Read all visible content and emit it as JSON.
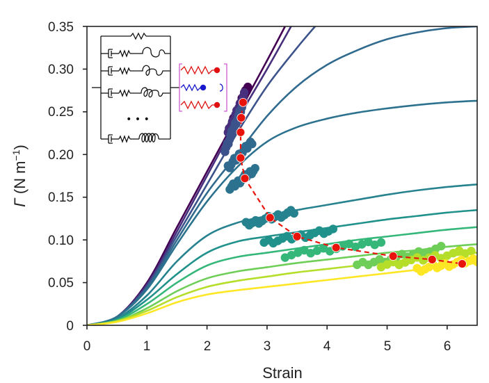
{
  "chart_data": {
    "type": "line",
    "xlabel": "Strain",
    "ylabel": {
      "symbol": "Γ",
      "unit": "(N m",
      "exp": "−1",
      "close": ")"
    },
    "xlim": [
      0,
      6.5
    ],
    "ylim": [
      0,
      0.35
    ],
    "xticks": [
      "0",
      "1",
      "2",
      "3",
      "4",
      "5",
      "6"
    ],
    "yticks": [
      "0",
      "0.05",
      "0.10",
      "0.15",
      "0.20",
      "0.25",
      "0.30",
      "0.35"
    ],
    "series": [
      {
        "name": "curve-1",
        "color": "#440154",
        "points": [
          [
            0,
            0
          ],
          [
            0.5,
            0.01
          ],
          [
            1,
            0.05
          ],
          [
            1.5,
            0.115
          ],
          [
            2,
            0.18
          ],
          [
            2.5,
            0.245
          ],
          [
            3,
            0.31
          ],
          [
            3.3,
            0.35
          ]
        ]
      },
      {
        "name": "curve-2",
        "color": "#472f7d",
        "points": [
          [
            0,
            0
          ],
          [
            0.5,
            0.01
          ],
          [
            1,
            0.048
          ],
          [
            1.5,
            0.11
          ],
          [
            2,
            0.175
          ],
          [
            2.5,
            0.24
          ],
          [
            3,
            0.3
          ],
          [
            3.4,
            0.35
          ]
        ]
      },
      {
        "name": "curve-3",
        "color": "#3b528b",
        "points": [
          [
            0,
            0
          ],
          [
            0.5,
            0.01
          ],
          [
            1,
            0.046
          ],
          [
            1.5,
            0.105
          ],
          [
            2,
            0.165
          ],
          [
            2.5,
            0.225
          ],
          [
            3,
            0.28
          ],
          [
            3.5,
            0.325
          ],
          [
            3.8,
            0.35
          ]
        ]
      },
      {
        "name": "curve-4",
        "color": "#306a8e",
        "points": [
          [
            0,
            0
          ],
          [
            0.5,
            0.01
          ],
          [
            1,
            0.044
          ],
          [
            1.5,
            0.1
          ],
          [
            2,
            0.155
          ],
          [
            2.5,
            0.2
          ],
          [
            3,
            0.245
          ],
          [
            3.5,
            0.28
          ],
          [
            4,
            0.305
          ],
          [
            4.5,
            0.322
          ],
          [
            5,
            0.335
          ],
          [
            5.5,
            0.343
          ],
          [
            6,
            0.348
          ],
          [
            6.5,
            0.35
          ]
        ]
      },
      {
        "name": "curve-5",
        "color": "#2c728e",
        "points": [
          [
            0,
            0
          ],
          [
            0.5,
            0.01
          ],
          [
            1,
            0.042
          ],
          [
            1.5,
            0.095
          ],
          [
            2,
            0.145
          ],
          [
            2.5,
            0.185
          ],
          [
            3,
            0.215
          ],
          [
            3.5,
            0.232
          ],
          [
            4,
            0.242
          ],
          [
            4.5,
            0.249
          ],
          [
            5,
            0.254
          ],
          [
            5.5,
            0.258
          ],
          [
            6,
            0.261
          ],
          [
            6.5,
            0.263
          ]
        ]
      },
      {
        "name": "curve-6",
        "color": "#26828e",
        "points": [
          [
            0,
            0
          ],
          [
            0.5,
            0.008
          ],
          [
            1,
            0.035
          ],
          [
            1.5,
            0.075
          ],
          [
            2,
            0.105
          ],
          [
            2.5,
            0.12
          ],
          [
            3,
            0.128
          ],
          [
            3.5,
            0.135
          ],
          [
            4,
            0.141
          ],
          [
            4.5,
            0.147
          ],
          [
            5,
            0.153
          ],
          [
            5.5,
            0.158
          ],
          [
            6,
            0.162
          ],
          [
            6.5,
            0.165
          ]
        ]
      },
      {
        "name": "curve-7",
        "color": "#21918c",
        "points": [
          [
            0,
            0
          ],
          [
            0.5,
            0.007
          ],
          [
            1,
            0.03
          ],
          [
            1.5,
            0.06
          ],
          [
            2,
            0.085
          ],
          [
            2.5,
            0.098
          ],
          [
            3,
            0.104
          ],
          [
            3.5,
            0.109
          ],
          [
            4,
            0.114
          ],
          [
            4.5,
            0.119
          ],
          [
            5,
            0.124
          ],
          [
            5.5,
            0.128
          ],
          [
            6,
            0.132
          ],
          [
            6.5,
            0.135
          ]
        ]
      },
      {
        "name": "curve-8",
        "color": "#35b779",
        "points": [
          [
            0,
            0
          ],
          [
            0.5,
            0.006
          ],
          [
            1,
            0.025
          ],
          [
            1.5,
            0.05
          ],
          [
            2,
            0.07
          ],
          [
            2.5,
            0.08
          ],
          [
            3,
            0.085
          ],
          [
            3.5,
            0.09
          ],
          [
            4,
            0.095
          ],
          [
            4.5,
            0.1
          ],
          [
            5,
            0.104
          ],
          [
            5.5,
            0.108
          ],
          [
            6,
            0.112
          ],
          [
            6.5,
            0.115
          ]
        ]
      },
      {
        "name": "curve-9",
        "color": "#6ece58",
        "points": [
          [
            0,
            0
          ],
          [
            0.5,
            0.005
          ],
          [
            1,
            0.02
          ],
          [
            1.5,
            0.04
          ],
          [
            2,
            0.055
          ],
          [
            2.5,
            0.063
          ],
          [
            3,
            0.068
          ],
          [
            3.5,
            0.073
          ],
          [
            4,
            0.077
          ],
          [
            4.5,
            0.081
          ],
          [
            5,
            0.085
          ],
          [
            5.5,
            0.088
          ],
          [
            6,
            0.092
          ],
          [
            6.5,
            0.095
          ]
        ]
      },
      {
        "name": "curve-10",
        "color": "#b5de2b",
        "points": [
          [
            0,
            0
          ],
          [
            0.5,
            0.005
          ],
          [
            1,
            0.017
          ],
          [
            1.5,
            0.033
          ],
          [
            2,
            0.045
          ],
          [
            2.5,
            0.052
          ],
          [
            3,
            0.057
          ],
          [
            3.5,
            0.062
          ],
          [
            4,
            0.066
          ],
          [
            4.5,
            0.07
          ],
          [
            5,
            0.074
          ],
          [
            5.5,
            0.078
          ],
          [
            6,
            0.081
          ],
          [
            6.5,
            0.085
          ]
        ]
      },
      {
        "name": "curve-11",
        "color": "#fde725",
        "points": [
          [
            0,
            0
          ],
          [
            0.5,
            0.004
          ],
          [
            1,
            0.014
          ],
          [
            1.5,
            0.027
          ],
          [
            2,
            0.036
          ],
          [
            2.5,
            0.041
          ],
          [
            3,
            0.045
          ],
          [
            3.5,
            0.049
          ],
          [
            4,
            0.053
          ],
          [
            4.5,
            0.057
          ],
          [
            5,
            0.061
          ],
          [
            5.5,
            0.065
          ],
          [
            6,
            0.069
          ],
          [
            6.5,
            0.073
          ]
        ]
      }
    ],
    "clusters": [
      {
        "color": "#440154",
        "x0": 2.38,
        "y0": 0.23,
        "x1": 2.68,
        "y1": 0.28
      },
      {
        "color": "#472f7d",
        "x0": 2.35,
        "y0": 0.225,
        "x1": 2.62,
        "y1": 0.27
      },
      {
        "color": "#3b528b",
        "x0": 2.3,
        "y0": 0.205,
        "x1": 2.58,
        "y1": 0.255
      },
      {
        "color": "#306a8e",
        "x0": 2.35,
        "y0": 0.185,
        "x1": 2.75,
        "y1": 0.215
      },
      {
        "color": "#2c728e",
        "x0": 2.38,
        "y0": 0.16,
        "x1": 2.8,
        "y1": 0.183
      },
      {
        "color": "#26828e",
        "x0": 2.65,
        "y0": 0.118,
        "x1": 3.45,
        "y1": 0.133
      },
      {
        "color": "#21918c",
        "x0": 2.95,
        "y0": 0.097,
        "x1": 4.1,
        "y1": 0.111
      },
      {
        "color": "#35b779",
        "x0": 3.3,
        "y0": 0.082,
        "x1": 4.9,
        "y1": 0.098
      },
      {
        "color": "#6ece58",
        "x0": 4.5,
        "y0": 0.07,
        "x1": 5.9,
        "y1": 0.09
      },
      {
        "color": "#b5de2b",
        "x0": 4.9,
        "y0": 0.07,
        "x1": 6.4,
        "y1": 0.087
      },
      {
        "color": "#fde725",
        "x0": 5.5,
        "y0": 0.065,
        "x1": 6.5,
        "y1": 0.077
      }
    ],
    "failure_points": {
      "color": "#e8140c",
      "style": "dashed",
      "points": [
        [
          2.6,
          0.261
        ],
        [
          2.57,
          0.243
        ],
        [
          2.56,
          0.226
        ],
        [
          2.56,
          0.196
        ],
        [
          2.63,
          0.172
        ],
        [
          3.05,
          0.126
        ],
        [
          3.5,
          0.104
        ],
        [
          4.15,
          0.091
        ],
        [
          5.1,
          0.081
        ],
        [
          5.75,
          0.077
        ],
        [
          6.25,
          0.072
        ]
      ]
    }
  },
  "inset": {
    "dots": "• • •",
    "wire_color": "#111111",
    "network_spring_color": "#e01010",
    "active_spring_color": "#1a1acc",
    "bracket_color": "#d05ad0"
  }
}
